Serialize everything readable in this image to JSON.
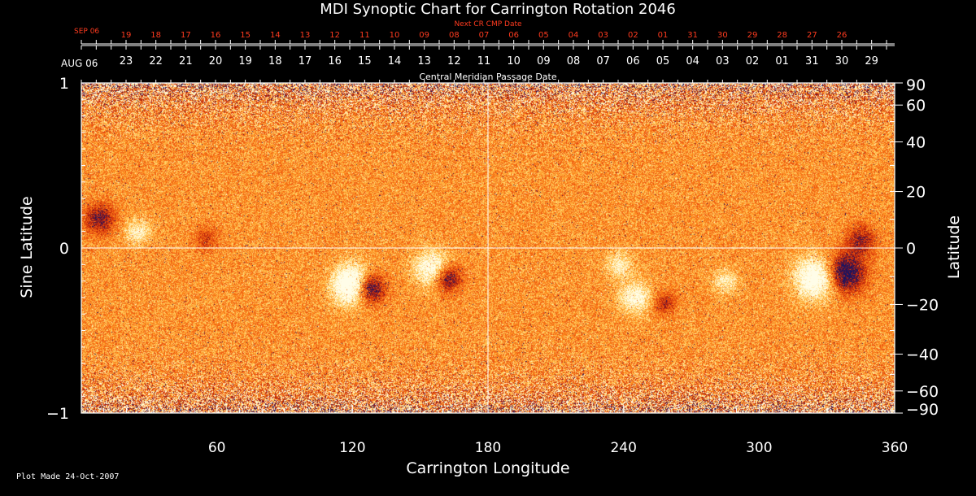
{
  "chart_data": {
    "type": "heatmap",
    "title": "MDI Synoptic Chart for Carrington Rotation 2046",
    "xlabel": "Carrington Longitude",
    "ylabel_left": "Sine Latitude",
    "ylabel_right": "Latitude",
    "xlim": [
      0,
      360
    ],
    "ylim": [
      -1,
      1
    ],
    "x_ticks": [
      60,
      120,
      180,
      240,
      300,
      360
    ],
    "y_ticks_left": [
      {
        "value": 1,
        "label": "1"
      },
      {
        "value": 0,
        "label": "0"
      },
      {
        "value": -1,
        "label": "−1"
      }
    ],
    "y_ticks_right": [
      {
        "value": 90,
        "label": "90"
      },
      {
        "value": 60,
        "label": "60"
      },
      {
        "value": 40,
        "label": "40"
      },
      {
        "value": 20,
        "label": "20"
      },
      {
        "value": 0,
        "label": "0"
      },
      {
        "value": -20,
        "label": "−20"
      },
      {
        "value": -40,
        "label": "−40"
      },
      {
        "value": -60,
        "label": "−60"
      },
      {
        "value": -90,
        "label": "−90"
      }
    ],
    "guide_lines": {
      "longitude": 180,
      "sine_latitude": 0
    },
    "top_axis_next": {
      "label": "Next CR CMP Date",
      "start_label": "SEP 06",
      "dates": [
        "19",
        "18",
        "17",
        "16",
        "15",
        "14",
        "13",
        "12",
        "11",
        "10",
        "09",
        "08",
        "07",
        "06",
        "05",
        "04",
        "03",
        "02",
        "01",
        "31",
        "30",
        "29",
        "28",
        "27",
        "26"
      ],
      "x_start": 19.8,
      "x_step": 13.2,
      "color": "#ff3b1f"
    },
    "top_axis_cmp": {
      "label": "Central Meridian Passage Date",
      "start_label": "AUG 06",
      "dates": [
        "23",
        "22",
        "21",
        "20",
        "19",
        "18",
        "17",
        "16",
        "15",
        "14",
        "13",
        "12",
        "11",
        "10",
        "09",
        "08",
        "07",
        "06",
        "05",
        "04",
        "03",
        "02",
        "01",
        "31",
        "30",
        "29"
      ],
      "x_start": 19.8,
      "x_step": 13.2
    },
    "features": [
      {
        "lon": 120,
        "sinlat": -0.22,
        "polarity": "positive",
        "strength": 1.0,
        "size": 0.9
      },
      {
        "lon": 127,
        "sinlat": -0.24,
        "polarity": "negative",
        "strength": 1.0,
        "size": 0.6
      },
      {
        "lon": 155,
        "sinlat": -0.12,
        "polarity": "positive",
        "strength": 0.6,
        "size": 0.8
      },
      {
        "lon": 162,
        "sinlat": -0.18,
        "polarity": "negative",
        "strength": 0.7,
        "size": 0.5
      },
      {
        "lon": 325,
        "sinlat": -0.18,
        "polarity": "positive",
        "strength": 0.8,
        "size": 1.0
      },
      {
        "lon": 338,
        "sinlat": -0.15,
        "polarity": "negative",
        "strength": 0.9,
        "size": 0.9
      },
      {
        "lon": 345,
        "sinlat": 0.05,
        "polarity": "negative",
        "strength": 0.5,
        "size": 0.6
      },
      {
        "lon": 245,
        "sinlat": -0.3,
        "polarity": "positive",
        "strength": 0.5,
        "size": 0.7
      },
      {
        "lon": 258,
        "sinlat": -0.33,
        "polarity": "negative",
        "strength": 0.4,
        "size": 0.4
      },
      {
        "lon": 8,
        "sinlat": 0.18,
        "polarity": "negative",
        "strength": 0.6,
        "size": 0.6
      },
      {
        "lon": 25,
        "sinlat": 0.1,
        "polarity": "positive",
        "strength": 0.4,
        "size": 0.5
      },
      {
        "lon": 55,
        "sinlat": 0.06,
        "polarity": "negative",
        "strength": 0.3,
        "size": 0.4
      },
      {
        "lon": 238,
        "sinlat": -0.1,
        "polarity": "positive",
        "strength": 0.4,
        "size": 0.5
      },
      {
        "lon": 285,
        "sinlat": -0.2,
        "polarity": "positive",
        "strength": 0.35,
        "size": 0.5
      }
    ],
    "colormap": [
      "#1b1460",
      "#b01a08",
      "#e84a10",
      "#ff8c1a",
      "#ffd66b",
      "#fffde8"
    ]
  },
  "footer": {
    "plot_made": "Plot Made 24-Oct-2007"
  }
}
